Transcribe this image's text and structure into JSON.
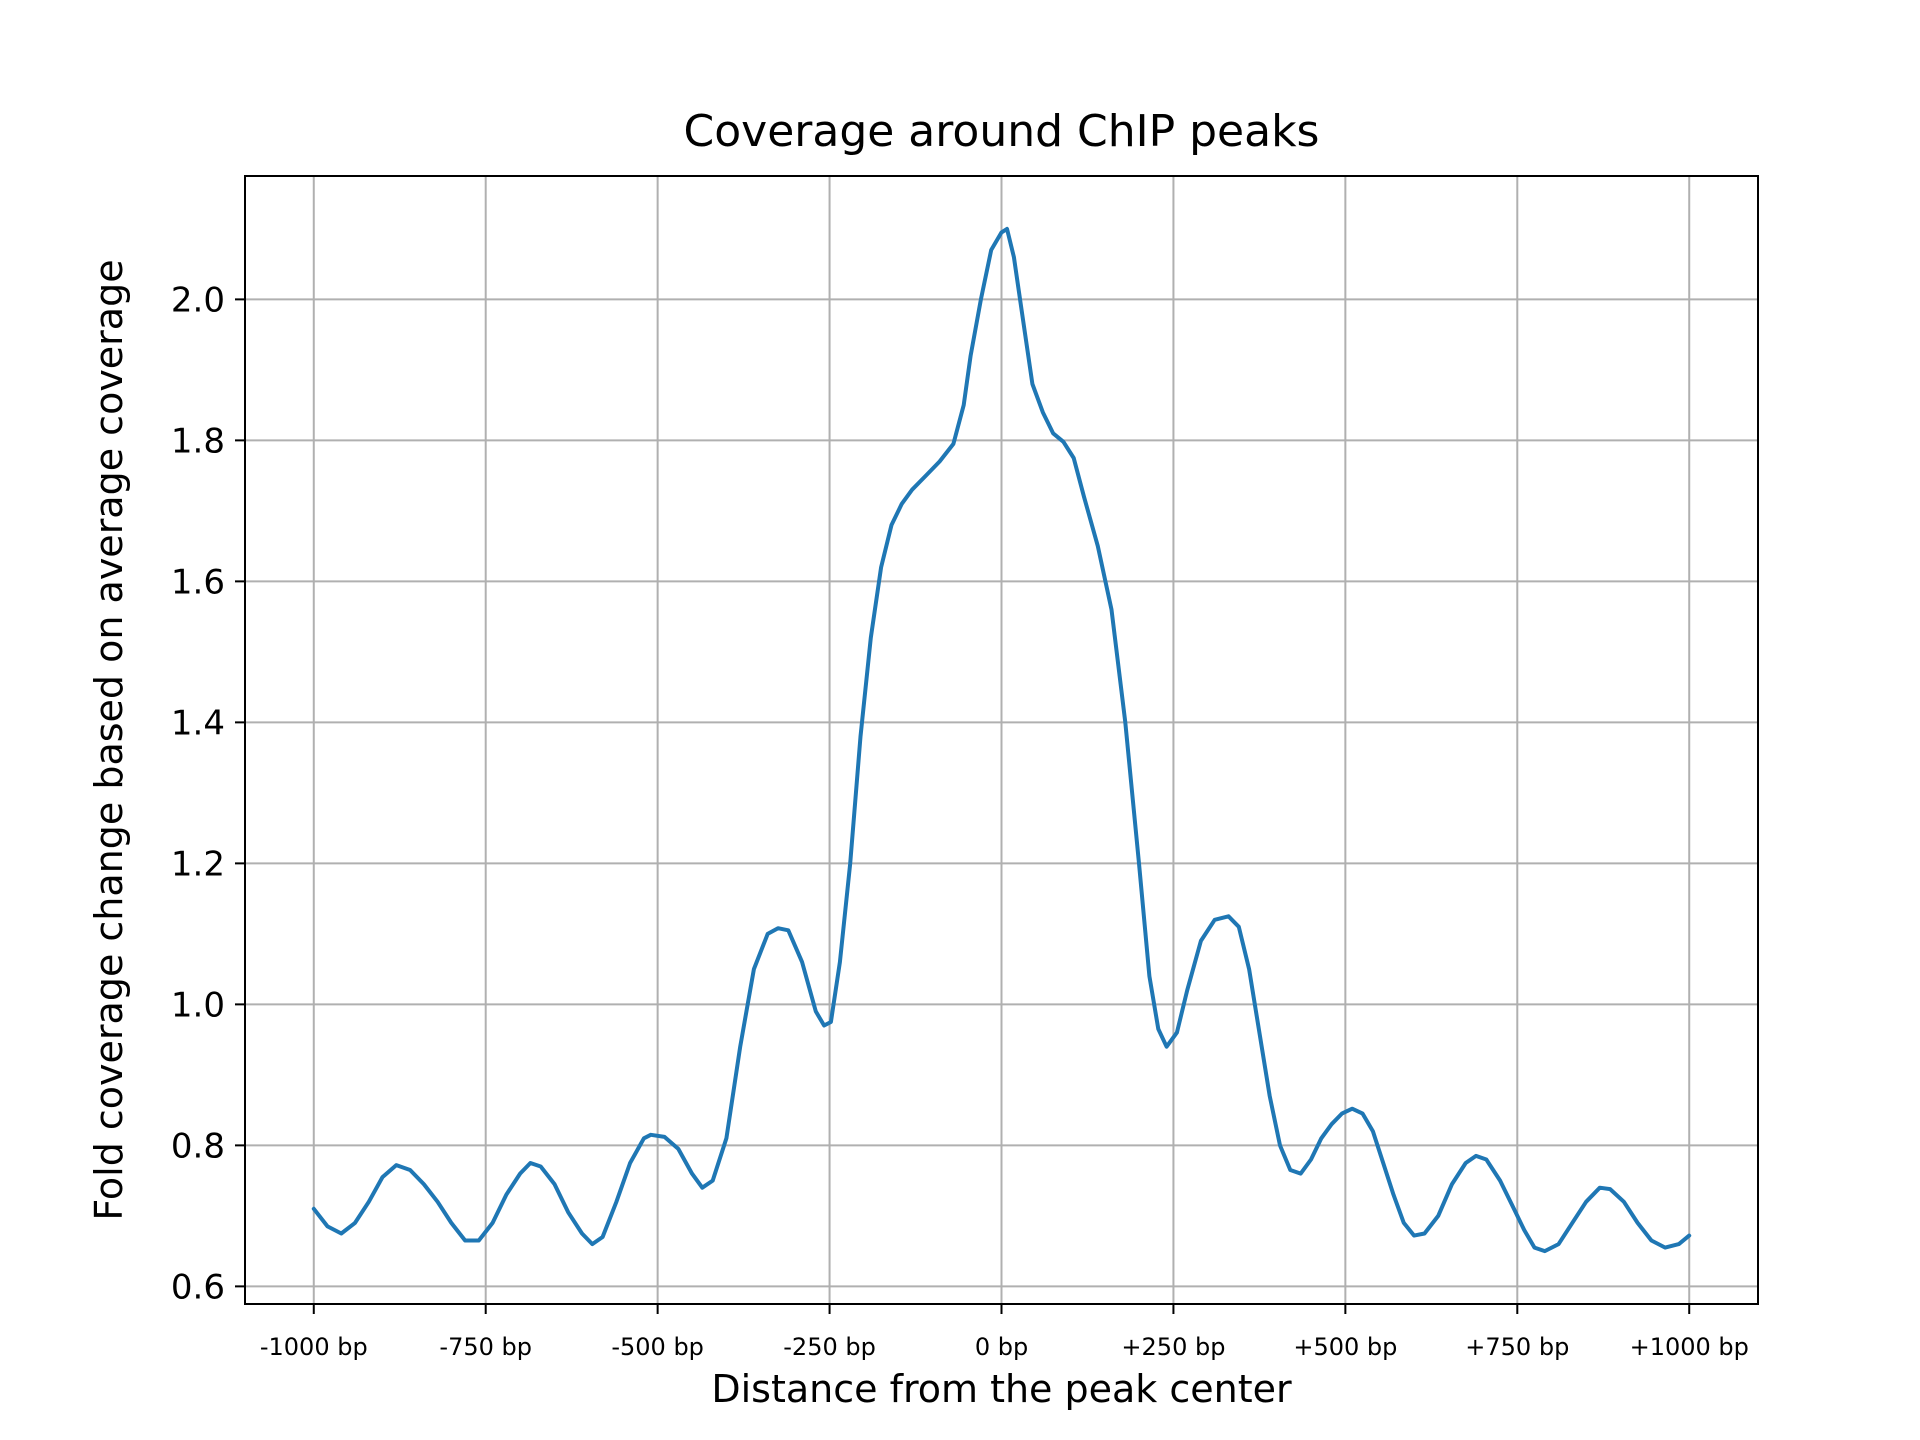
{
  "chart_data": {
    "type": "line",
    "title": "Coverage around ChIP peaks",
    "xlabel": "Distance from the peak center",
    "ylabel": "Fold coverage change  based on average coverage",
    "xlim": [
      -1100,
      1100
    ],
    "ylim": [
      0.575,
      2.175
    ],
    "grid": true,
    "x_ticks": [
      {
        "value": -1000,
        "label": "-1000 bp"
      },
      {
        "value": -750,
        "label": "-750 bp"
      },
      {
        "value": -500,
        "label": "-500 bp"
      },
      {
        "value": -250,
        "label": "-250 bp"
      },
      {
        "value": 0,
        "label": "0 bp"
      },
      {
        "value": 250,
        "label": "+250 bp"
      },
      {
        "value": 500,
        "label": "+500 bp"
      },
      {
        "value": 750,
        "label": "+750 bp"
      },
      {
        "value": 1000,
        "label": "+1000 bp"
      }
    ],
    "y_ticks": [
      {
        "value": 0.6,
        "label": "0.6"
      },
      {
        "value": 0.8,
        "label": "0.8"
      },
      {
        "value": 1.0,
        "label": "1.0"
      },
      {
        "value": 1.2,
        "label": "1.2"
      },
      {
        "value": 1.4,
        "label": "1.4"
      },
      {
        "value": 1.6,
        "label": "1.6"
      },
      {
        "value": 1.8,
        "label": "1.8"
      },
      {
        "value": 2.0,
        "label": "2.0"
      }
    ],
    "series": [
      {
        "color": "#1f77b4",
        "points": [
          [
            -1000,
            0.71
          ],
          [
            -980,
            0.685
          ],
          [
            -960,
            0.675
          ],
          [
            -940,
            0.69
          ],
          [
            -920,
            0.72
          ],
          [
            -900,
            0.755
          ],
          [
            -880,
            0.772
          ],
          [
            -860,
            0.765
          ],
          [
            -840,
            0.745
          ],
          [
            -820,
            0.72
          ],
          [
            -800,
            0.69
          ],
          [
            -780,
            0.665
          ],
          [
            -760,
            0.665
          ],
          [
            -740,
            0.69
          ],
          [
            -720,
            0.73
          ],
          [
            -700,
            0.76
          ],
          [
            -685,
            0.775
          ],
          [
            -670,
            0.77
          ],
          [
            -650,
            0.745
          ],
          [
            -630,
            0.705
          ],
          [
            -610,
            0.675
          ],
          [
            -595,
            0.66
          ],
          [
            -580,
            0.67
          ],
          [
            -560,
            0.72
          ],
          [
            -540,
            0.775
          ],
          [
            -520,
            0.81
          ],
          [
            -510,
            0.815
          ],
          [
            -490,
            0.812
          ],
          [
            -470,
            0.795
          ],
          [
            -450,
            0.76
          ],
          [
            -435,
            0.74
          ],
          [
            -420,
            0.75
          ],
          [
            -400,
            0.81
          ],
          [
            -380,
            0.94
          ],
          [
            -360,
            1.05
          ],
          [
            -340,
            1.1
          ],
          [
            -325,
            1.108
          ],
          [
            -310,
            1.105
          ],
          [
            -290,
            1.06
          ],
          [
            -270,
            0.99
          ],
          [
            -258,
            0.97
          ],
          [
            -248,
            0.975
          ],
          [
            -235,
            1.06
          ],
          [
            -220,
            1.2
          ],
          [
            -205,
            1.38
          ],
          [
            -190,
            1.52
          ],
          [
            -175,
            1.62
          ],
          [
            -160,
            1.68
          ],
          [
            -145,
            1.71
          ],
          [
            -130,
            1.73
          ],
          [
            -110,
            1.75
          ],
          [
            -90,
            1.77
          ],
          [
            -70,
            1.795
          ],
          [
            -55,
            1.85
          ],
          [
            -45,
            1.92
          ],
          [
            -30,
            2.0
          ],
          [
            -15,
            2.07
          ],
          [
            0,
            2.095
          ],
          [
            8,
            2.1
          ],
          [
            18,
            2.06
          ],
          [
            30,
            1.98
          ],
          [
            45,
            1.88
          ],
          [
            60,
            1.84
          ],
          [
            75,
            1.81
          ],
          [
            90,
            1.798
          ],
          [
            105,
            1.775
          ],
          [
            120,
            1.72
          ],
          [
            140,
            1.65
          ],
          [
            160,
            1.56
          ],
          [
            180,
            1.4
          ],
          [
            200,
            1.2
          ],
          [
            215,
            1.04
          ],
          [
            228,
            0.965
          ],
          [
            240,
            0.94
          ],
          [
            255,
            0.96
          ],
          [
            270,
            1.02
          ],
          [
            290,
            1.09
          ],
          [
            310,
            1.12
          ],
          [
            330,
            1.125
          ],
          [
            345,
            1.11
          ],
          [
            360,
            1.05
          ],
          [
            375,
            0.96
          ],
          [
            390,
            0.87
          ],
          [
            405,
            0.8
          ],
          [
            420,
            0.765
          ],
          [
            435,
            0.76
          ],
          [
            450,
            0.78
          ],
          [
            465,
            0.81
          ],
          [
            480,
            0.83
          ],
          [
            495,
            0.845
          ],
          [
            510,
            0.852
          ],
          [
            525,
            0.845
          ],
          [
            540,
            0.82
          ],
          [
            555,
            0.775
          ],
          [
            570,
            0.73
          ],
          [
            585,
            0.69
          ],
          [
            600,
            0.672
          ],
          [
            615,
            0.675
          ],
          [
            635,
            0.7
          ],
          [
            655,
            0.745
          ],
          [
            675,
            0.775
          ],
          [
            690,
            0.785
          ],
          [
            705,
            0.78
          ],
          [
            725,
            0.75
          ],
          [
            745,
            0.71
          ],
          [
            760,
            0.68
          ],
          [
            775,
            0.655
          ],
          [
            790,
            0.65
          ],
          [
            810,
            0.66
          ],
          [
            830,
            0.69
          ],
          [
            850,
            0.72
          ],
          [
            870,
            0.74
          ],
          [
            885,
            0.738
          ],
          [
            905,
            0.72
          ],
          [
            925,
            0.69
          ],
          [
            945,
            0.665
          ],
          [
            965,
            0.655
          ],
          [
            985,
            0.66
          ],
          [
            1000,
            0.672
          ]
        ]
      }
    ]
  }
}
